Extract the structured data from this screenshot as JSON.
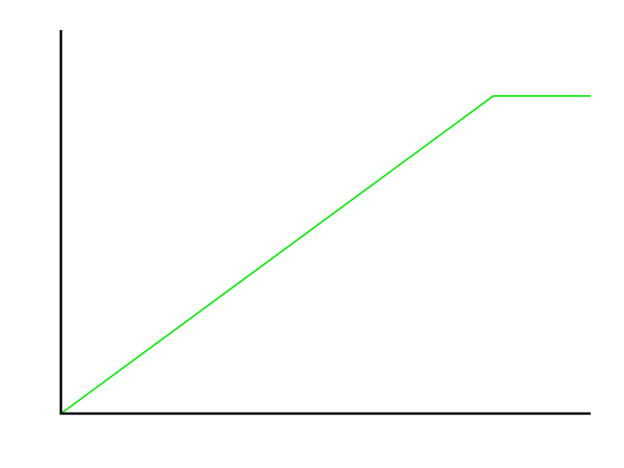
{
  "chart_data": {
    "type": "line",
    "title": "",
    "xlabel": "",
    "ylabel": "",
    "xlim": [
      0,
      1
    ],
    "ylim": [
      0,
      1
    ],
    "grid": false,
    "series": [
      {
        "color": "#00ee00",
        "x": [
          0,
          0.816,
          1
        ],
        "y": [
          0,
          0.828,
          0.828
        ]
      }
    ],
    "axis_color": "#000000"
  }
}
